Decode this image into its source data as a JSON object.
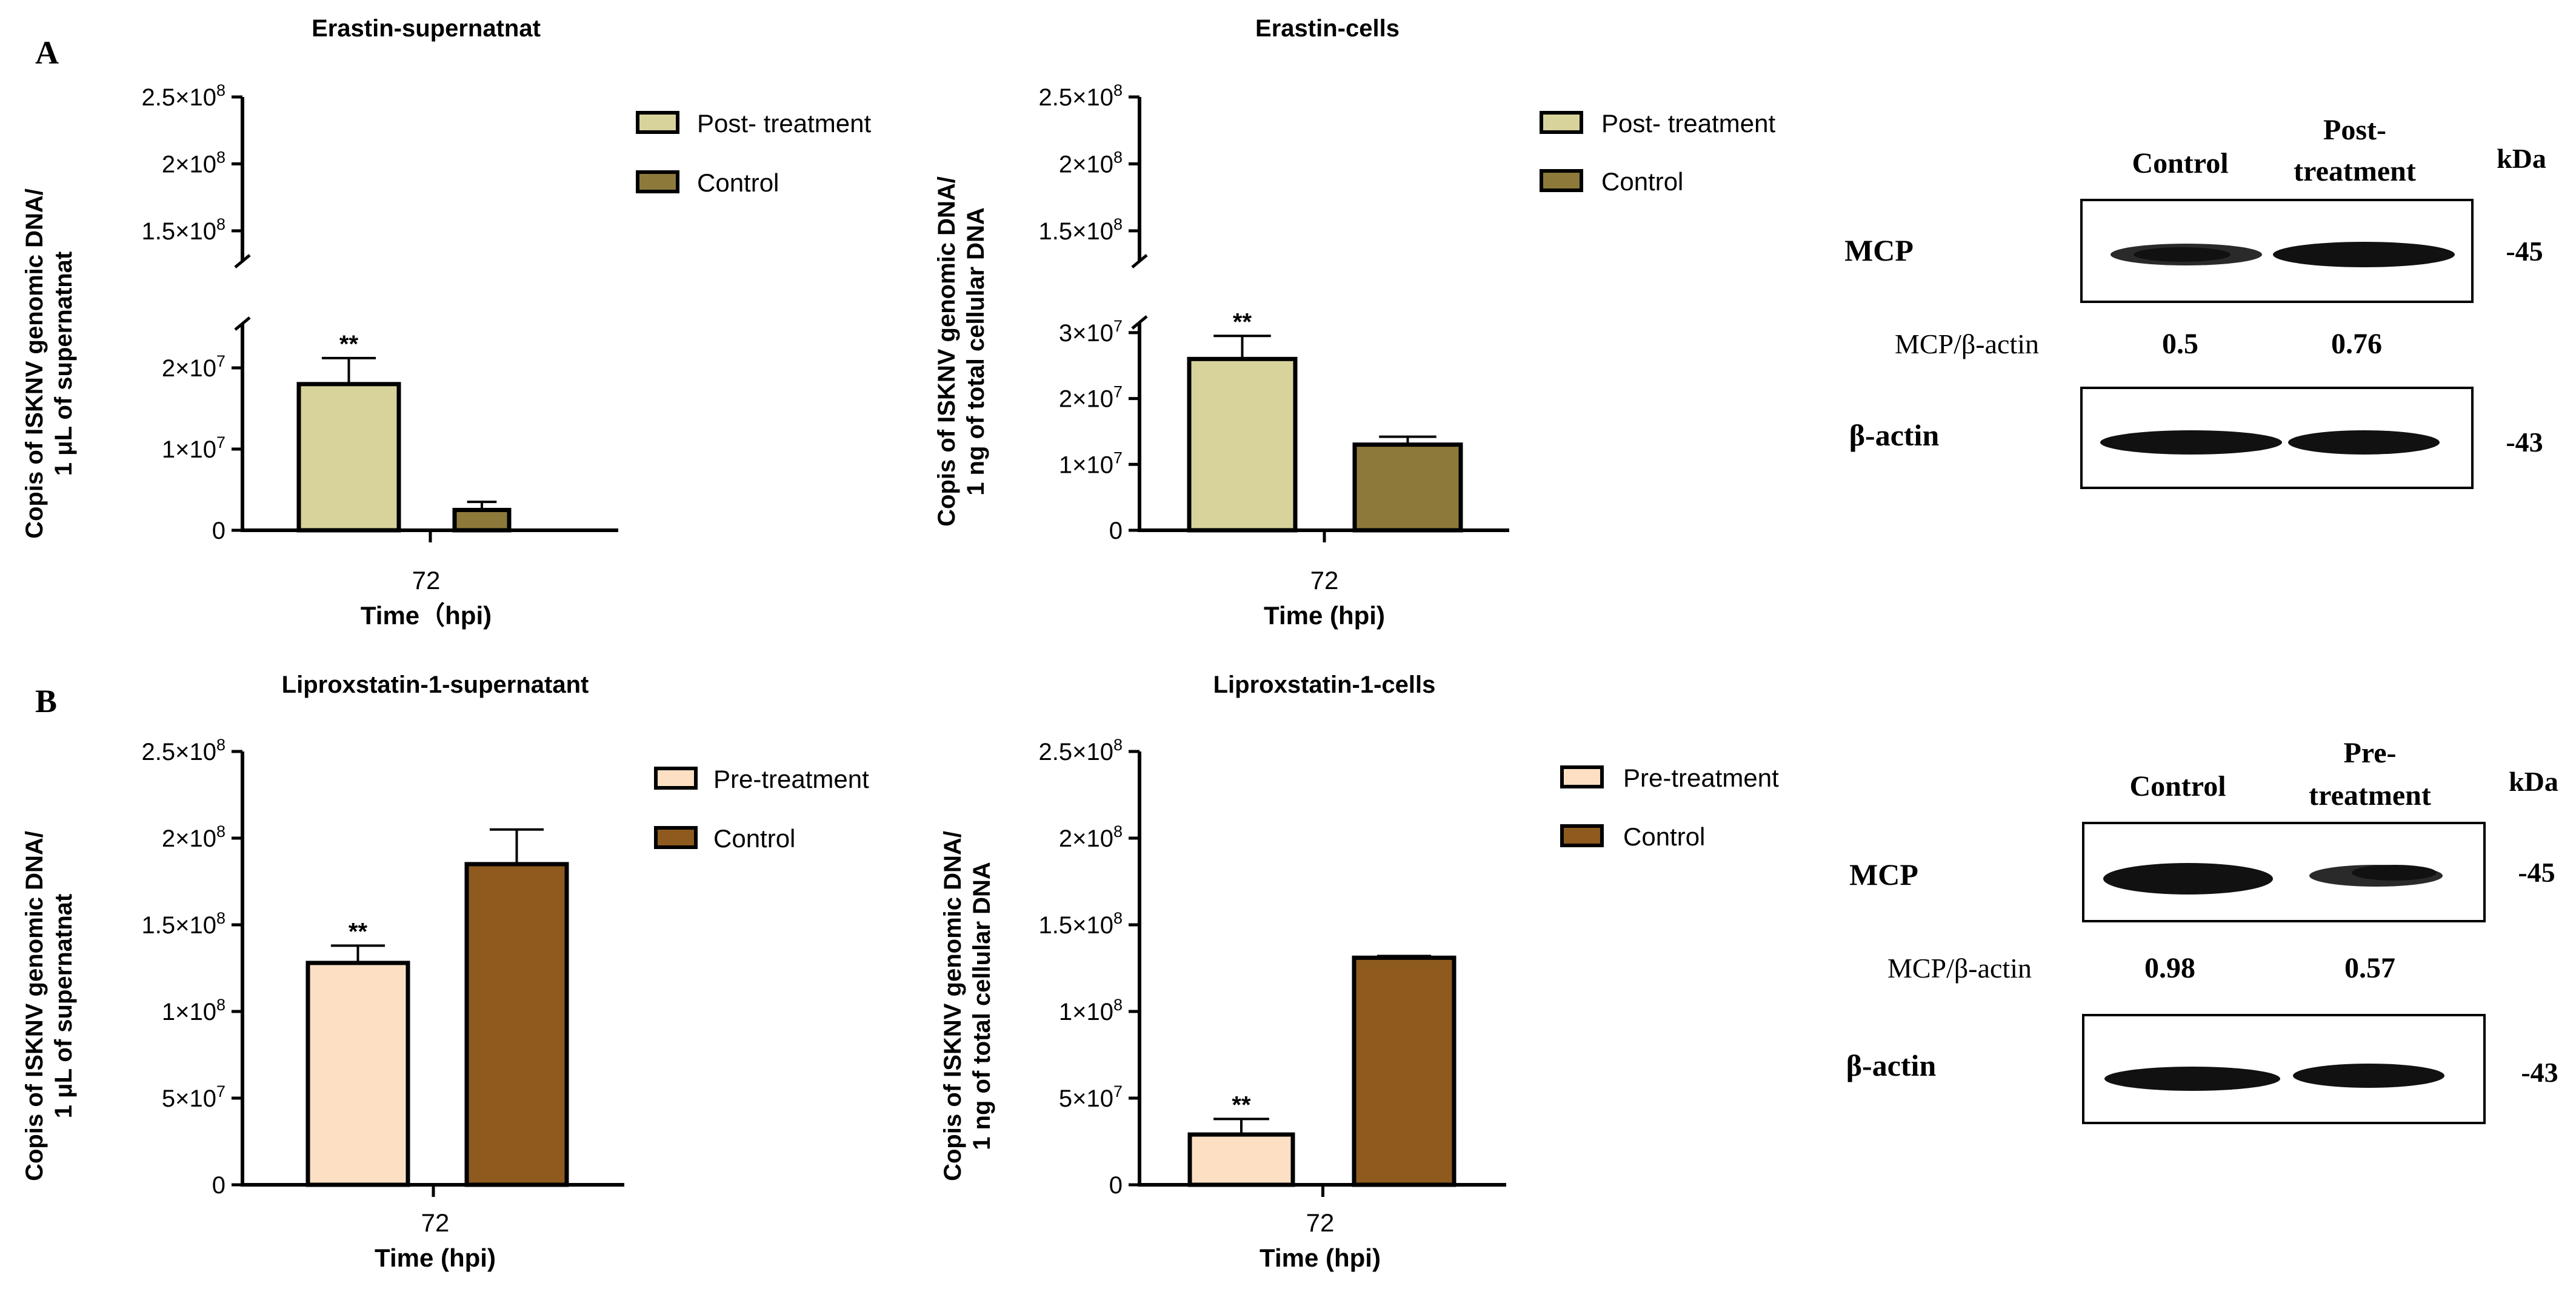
{
  "panel_labels": {
    "a": "A",
    "b": "B"
  },
  "chart_data": [
    {
      "id": "a1",
      "type": "bar",
      "broken_axis": true,
      "title": "Erastin-supernatnat",
      "ylabel_line1": "Copis of ISKNV genomic DNA/",
      "ylabel_line2": "1 μL of supernatnat",
      "xtick": "72",
      "xlabel": "Time（hpi)",
      "lower_ylim": [
        0,
        25000000
      ],
      "upper_ylim": [
        130000000,
        250000000
      ],
      "lower_ticks": [
        {
          "value": 0,
          "mant": "0",
          "exp": ""
        },
        {
          "value": 10000000,
          "mant": "1×10",
          "exp": "7"
        },
        {
          "value": 20000000,
          "mant": "2×10",
          "exp": "7"
        }
      ],
      "upper_ticks": [
        {
          "value": 150000000,
          "mant": "1.5×10",
          "exp": "8"
        },
        {
          "value": 200000000,
          "mant": "2×10",
          "exp": "8"
        },
        {
          "value": 250000000,
          "mant": "2.5×10",
          "exp": "8"
        }
      ],
      "series": [
        {
          "name": "Post- treatment",
          "value": 18000000,
          "error": 3200000,
          "color": "#d8d39b",
          "sig": "**"
        },
        {
          "name": "Control",
          "value": 2500000,
          "error": 1000000,
          "color": "#8d7a3b",
          "sig": ""
        }
      ]
    },
    {
      "id": "a2",
      "type": "bar",
      "broken_axis": true,
      "title": "Erastin-cells",
      "ylabel_line1": "Copis of ISKNV genomic DNA/",
      "ylabel_line2": "1 ng of total cellular DNA",
      "xtick": "72",
      "xlabel": "Time (hpi)",
      "lower_ylim": [
        0,
        31000000
      ],
      "upper_ylim": [
        130000000,
        250000000
      ],
      "lower_ticks": [
        {
          "value": 0,
          "mant": "0",
          "exp": ""
        },
        {
          "value": 10000000,
          "mant": "1×10",
          "exp": "7"
        },
        {
          "value": 20000000,
          "mant": "2×10",
          "exp": "7"
        },
        {
          "value": 30000000,
          "mant": "3×10",
          "exp": "7"
        }
      ],
      "upper_ticks": [
        {
          "value": 150000000,
          "mant": "1.5×10",
          "exp": "8"
        },
        {
          "value": 200000000,
          "mant": "2×10",
          "exp": "8"
        },
        {
          "value": 250000000,
          "mant": "2.5×10",
          "exp": "8"
        }
      ],
      "series": [
        {
          "name": "Post- treatment",
          "value": 26000000,
          "error": 3500000,
          "color": "#d8d39b",
          "sig": "**"
        },
        {
          "name": "Control",
          "value": 13000000,
          "error": 1200000,
          "color": "#8d7a3b",
          "sig": ""
        }
      ]
    },
    {
      "id": "b1",
      "type": "bar",
      "broken_axis": false,
      "title": "Liproxstatin-1-supernatant",
      "ylabel_line1": "Copis of ISKNV genomic DNA/",
      "ylabel_line2": "1 μL of supernatnat",
      "xtick": "72",
      "xlabel": "Time (hpi)",
      "ylim": [
        0,
        250000000
      ],
      "ticks": [
        {
          "value": 0,
          "mant": "0",
          "exp": ""
        },
        {
          "value": 50000000,
          "mant": "5×10",
          "exp": "7"
        },
        {
          "value": 100000000,
          "mant": "1×10",
          "exp": "8"
        },
        {
          "value": 150000000,
          "mant": "1.5×10",
          "exp": "8"
        },
        {
          "value": 200000000,
          "mant": "2×10",
          "exp": "8"
        },
        {
          "value": 250000000,
          "mant": "2.5×10",
          "exp": "8"
        }
      ],
      "series": [
        {
          "name": "Pre-treatment",
          "value": 128000000,
          "error": 10000000,
          "color": "#fde0c3",
          "sig": "**"
        },
        {
          "name": "Control",
          "value": 185000000,
          "error": 20000000,
          "color": "#8e5a1e",
          "sig": ""
        }
      ]
    },
    {
      "id": "b2",
      "type": "bar",
      "broken_axis": false,
      "title": "Liproxstatin-1-cells",
      "ylabel_line1": "Copis of ISKNV genomic DNA/",
      "ylabel_line2": "1 ng of total cellular DNA",
      "xtick": "72",
      "xlabel": "Time (hpi)",
      "ylim": [
        0,
        250000000
      ],
      "ticks": [
        {
          "value": 0,
          "mant": "0",
          "exp": ""
        },
        {
          "value": 50000000,
          "mant": "5×10",
          "exp": "7"
        },
        {
          "value": 100000000,
          "mant": "1×10",
          "exp": "8"
        },
        {
          "value": 150000000,
          "mant": "1.5×10",
          "exp": "8"
        },
        {
          "value": 200000000,
          "mant": "2×10",
          "exp": "8"
        },
        {
          "value": 250000000,
          "mant": "2.5×10",
          "exp": "8"
        }
      ],
      "series": [
        {
          "name": "Pre-treatment",
          "value": 29000000,
          "error": 9000000,
          "color": "#fde0c3",
          "sig": "**"
        },
        {
          "name": "Control",
          "value": 131000000,
          "error": 1000000,
          "color": "#8e5a1e",
          "sig": ""
        }
      ]
    }
  ],
  "blots": [
    {
      "id": "blot-a",
      "col1": "Control",
      "col2_line1": "Post-",
      "col2_line2": "treatment",
      "kda": "kDa",
      "row1_label": "MCP",
      "row1_kda": "-45",
      "ratio_label": "MCP/β-actin",
      "ratio1": "0.5",
      "ratio2": "0.76",
      "row2_label": "β-actin",
      "row2_kda": "-43"
    },
    {
      "id": "blot-b",
      "col1": "Control",
      "col2_line1": "Pre-",
      "col2_line2": "treatment",
      "kda": "kDa",
      "row1_label": "MCP",
      "row1_kda": "-45",
      "ratio_label": "MCP/β-actin",
      "ratio1": "0.98",
      "ratio2": "0.57",
      "row2_label": "β-actin",
      "row2_kda": "-43"
    }
  ]
}
